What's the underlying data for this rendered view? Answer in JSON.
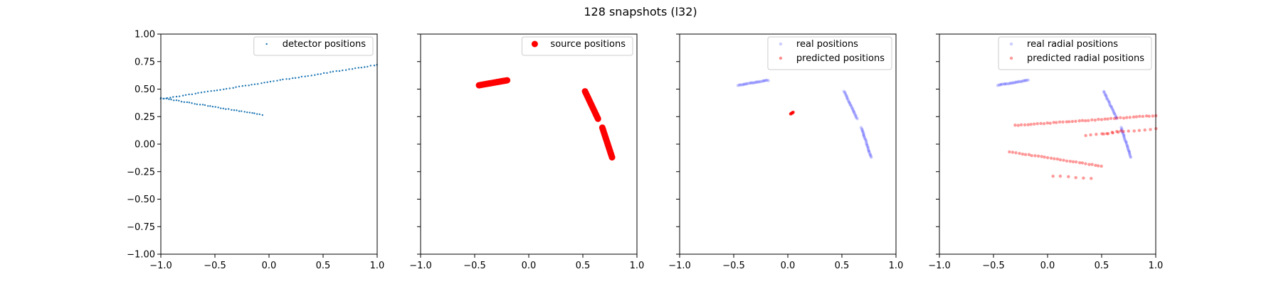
{
  "figure": {
    "suptitle": "128 snapshots (l32)",
    "colors": {
      "detector": "#1f77b4",
      "source": "#ff0000",
      "real": "#0000ff",
      "predicted": "#ff0000"
    }
  },
  "chart_data": [
    {
      "type": "scatter",
      "xlim": [
        -1.0,
        1.0
      ],
      "ylim": [
        -1.0,
        1.0
      ],
      "x_ticks": [
        "−1.0",
        "−0.5",
        "0.0",
        "0.5",
        "1.0"
      ],
      "y_ticks": [
        "−1.00",
        "−0.75",
        "−0.50",
        "−0.25",
        "0.00",
        "0.25",
        "0.50",
        "0.75",
        "1.00"
      ],
      "show_y_tick_labels": true,
      "legend_position": "upper-right",
      "series": [
        {
          "name": "detector positions",
          "color": "#1f77b4",
          "marker_radius": 1.2,
          "opacity": 1.0,
          "segments": [
            {
              "from": [
                -1.0,
                0.41
              ],
              "to": [
                1.0,
                0.72
              ],
              "count": 70
            },
            {
              "from": [
                -1.0,
                0.42
              ],
              "to": [
                -0.06,
                0.265
              ],
              "count": 40
            }
          ]
        }
      ]
    },
    {
      "type": "scatter",
      "xlim": [
        -1.0,
        1.0
      ],
      "ylim": [
        -1.0,
        1.0
      ],
      "x_ticks": [
        "−1.0",
        "−0.5",
        "0.0",
        "0.5",
        "1.0"
      ],
      "y_ticks": [
        "",
        "",
        "",
        "",
        "",
        "",
        "",
        "",
        ""
      ],
      "show_y_tick_labels": false,
      "legend_position": "upper-right",
      "series": [
        {
          "name": "source positions",
          "color": "#ff0000",
          "marker_radius": 4.5,
          "opacity": 1.0,
          "segments": [
            {
              "from": [
                -0.46,
                0.535
              ],
              "to": [
                -0.2,
                0.58
              ],
              "count": 30
            },
            {
              "from": [
                0.52,
                0.48
              ],
              "to": [
                0.64,
                0.23
              ],
              "count": 24
            },
            {
              "from": [
                0.68,
                0.15
              ],
              "to": [
                0.77,
                -0.12
              ],
              "count": 26
            }
          ]
        }
      ]
    },
    {
      "type": "scatter",
      "xlim": [
        -1.0,
        1.0
      ],
      "ylim": [
        -1.0,
        1.0
      ],
      "x_ticks": [
        "−1.0",
        "−0.5",
        "0.0",
        "0.5",
        "1.0"
      ],
      "y_ticks": [
        "",
        "",
        "",
        "",
        "",
        "",
        "",
        "",
        ""
      ],
      "show_y_tick_labels": false,
      "legend_position": "upper-right",
      "series": [
        {
          "name": "real positions",
          "color": "#0000ff",
          "marker_radius": 2.2,
          "opacity": 0.2,
          "segments": [
            {
              "from": [
                -0.46,
                0.535
              ],
              "to": [
                -0.18,
                0.58
              ],
              "count": 25
            },
            {
              "from": [
                0.52,
                0.48
              ],
              "to": [
                0.64,
                0.23
              ],
              "count": 24
            },
            {
              "from": [
                0.68,
                0.15
              ],
              "to": [
                0.77,
                -0.12
              ],
              "count": 26
            }
          ]
        },
        {
          "name": "predicted positions",
          "color": "#ff0000",
          "marker_radius": 2.2,
          "opacity": 0.45,
          "segments": [
            {
              "from": [
                0.025,
                0.275
              ],
              "to": [
                0.05,
                0.29
              ],
              "count": 12
            }
          ]
        }
      ]
    },
    {
      "type": "scatter",
      "xlim": [
        -1.0,
        1.0
      ],
      "ylim": [
        -1.0,
        1.0
      ],
      "x_ticks": [
        "−1.0",
        "−0.5",
        "0.0",
        "0.5",
        "1.0"
      ],
      "y_ticks": [
        "",
        "",
        "",
        "",
        "",
        "",
        "",
        "",
        ""
      ],
      "show_y_tick_labels": false,
      "legend_position": "upper-right",
      "series": [
        {
          "name": "real radial positions",
          "color": "#0000ff",
          "marker_radius": 2.2,
          "opacity": 0.2,
          "segments": [
            {
              "from": [
                -0.46,
                0.535
              ],
              "to": [
                -0.18,
                0.58
              ],
              "count": 25
            },
            {
              "from": [
                0.52,
                0.48
              ],
              "to": [
                0.64,
                0.23
              ],
              "count": 24
            },
            {
              "from": [
                0.68,
                0.15
              ],
              "to": [
                0.77,
                -0.12
              ],
              "count": 26
            }
          ]
        },
        {
          "name": "predicted radial positions",
          "color": "#ff0000",
          "marker_radius": 2.2,
          "opacity": 0.4,
          "segments": [
            {
              "from": [
                -0.3,
                0.17
              ],
              "to": [
                1.0,
                0.26
              ],
              "count": 45
            },
            {
              "from": [
                0.35,
                0.08
              ],
              "to": [
                1.0,
                0.14
              ],
              "count": 14
            },
            {
              "from": [
                -0.35,
                -0.07
              ],
              "to": [
                0.5,
                -0.2
              ],
              "count": 30
            },
            {
              "from": [
                0.05,
                -0.29
              ],
              "to": [
                0.4,
                -0.31
              ],
              "count": 6
            },
            {
              "from": [
                0.52,
                0.09
              ],
              "to": [
                0.68,
                0.12
              ],
              "count": 5
            }
          ]
        }
      ]
    }
  ]
}
